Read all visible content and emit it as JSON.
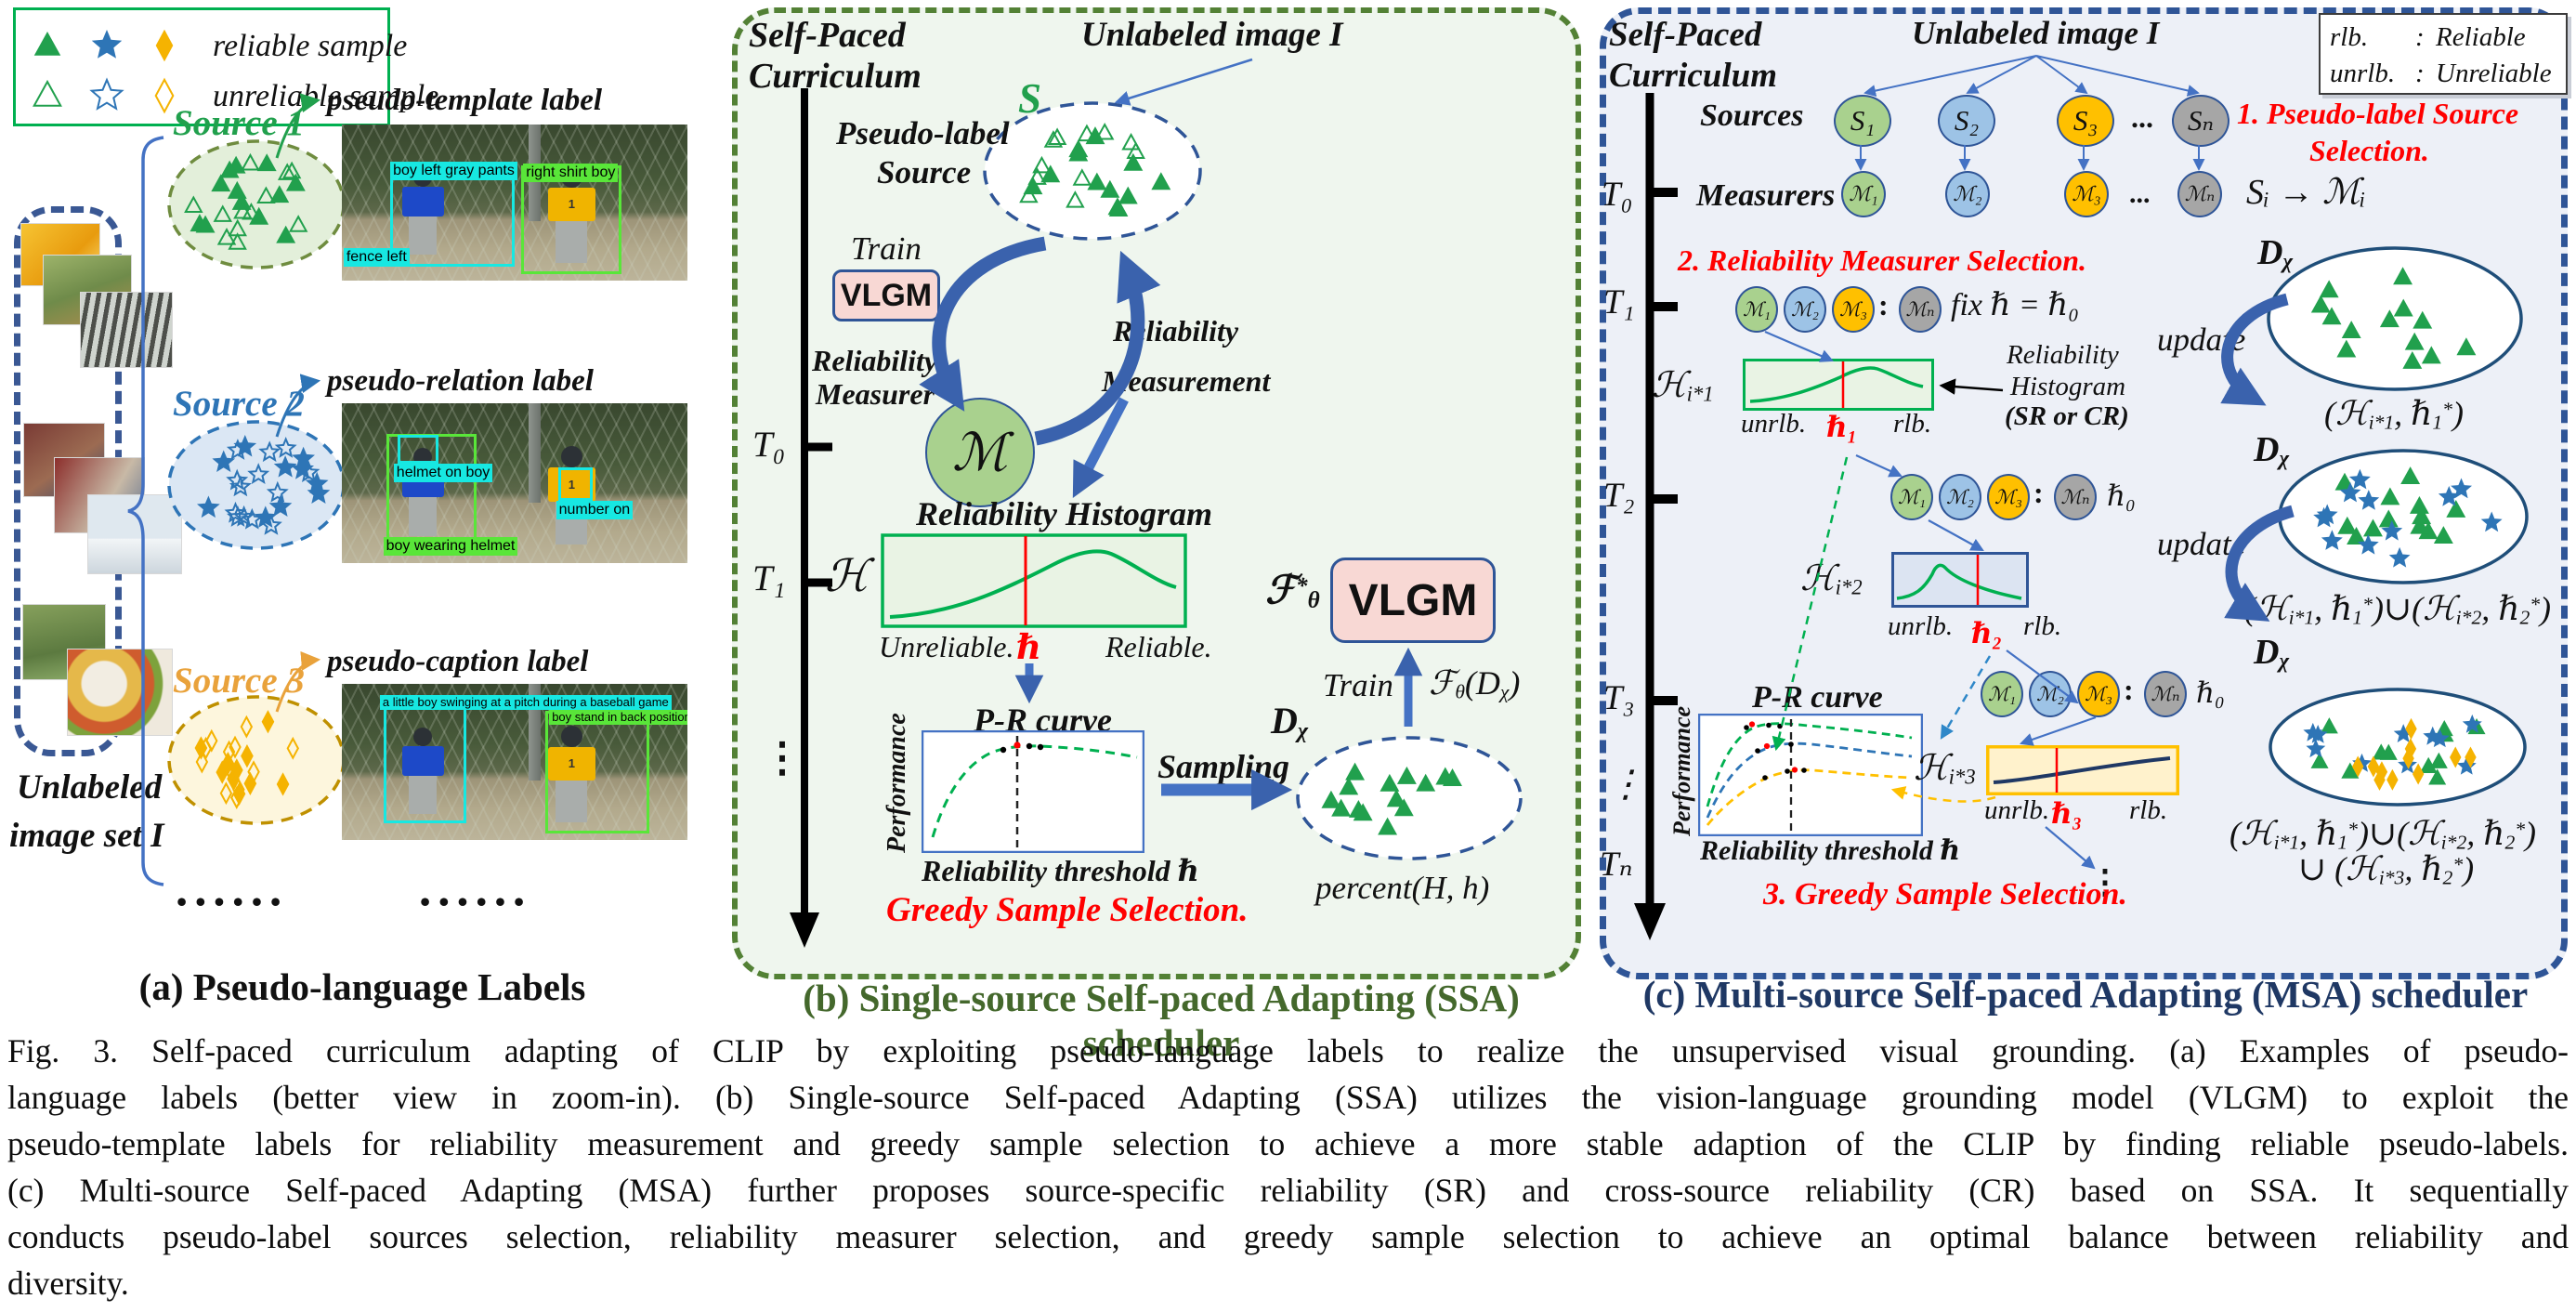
{
  "legend_a": {
    "reliable_label": "reliable sample",
    "unreliable_label": "unreliable sample"
  },
  "panel_a": {
    "title": "(a) Pseudo-language Labels",
    "unlabeled_set_line1": "Unlabeled",
    "unlabeled_set_line2": "image set I",
    "dots": "••••••",
    "sources": [
      {
        "name": "Source 1",
        "label_type": "pseudo-template label"
      },
      {
        "name": "Source 2",
        "label_type": "pseudo-relation label"
      },
      {
        "name": "Source 3",
        "label_type": "pseudo-caption label"
      }
    ],
    "jersey_number": "1",
    "photos": [
      {
        "labels": [
          "boy left gray pants",
          "right shirt boy",
          "fence left"
        ]
      },
      {
        "labels": [
          "helmet on boy",
          "number on",
          "boy wearing helmet"
        ]
      },
      {
        "labels": [
          "a little boy swinging at a pitch during a baseball game",
          "boy stand in back position t"
        ]
      }
    ]
  },
  "panel_b": {
    "curriculum_line1": "Self-Paced",
    "curriculum_line2": "Curriculum",
    "unlabeled_image": "Unlabeled image I",
    "s_symbol": "S",
    "pseudo_label_line1": "Pseudo-label",
    "pseudo_label_line2": "Source",
    "train_label": "Train",
    "vlgm_label": "VLGM",
    "measurer_line1": "Reliability",
    "measurer_line2": "Measurer",
    "measurer_symbol": "ℳ",
    "measurement_line1": "Reliability",
    "measurement_line2": "Measurement",
    "t0": "T₀",
    "t1": "T₁",
    "vdots": "⋮",
    "hist_symbol": "ℋ",
    "hist_title": "Reliability Histogram",
    "unreliable": "Unreliable.",
    "threshold_symbol": "ℏ",
    "reliable": "Reliable.",
    "pr_title": "P-R curve",
    "performance": "Performance",
    "threshold_axis": "Reliability threshold  ℏ",
    "greedy": "Greedy Sample Selection.",
    "sampling": "Sampling",
    "d_chi_html": "D<sub>χ</sub>",
    "percent_label": "percent(H, h)",
    "f_star_html": "ℱ<sup>*</sup><sub>θ</sub>",
    "train2_label": "Train",
    "f_train_html": "ℱ<sub>θ</sub>(D<sub>χ</sub>)",
    "vlgm2_label": "VLGM",
    "title": "(b) Single-source Self-paced Adapting (SSA) scheduler"
  },
  "panel_c": {
    "curriculum_line1": "Self-Paced",
    "curriculum_line2": "Curriculum",
    "unlabeled_image": "Unlabeled image I",
    "legend": {
      "colon": ":",
      "rows": [
        {
          "abbr": "rlb.",
          "name": "Reliable"
        },
        {
          "abbr": "unrlb.",
          "name": "Unreliable"
        }
      ]
    },
    "sources_label": "Sources",
    "measurers_label": "Measurers",
    "source_nodes": [
      "S₁",
      "S₂",
      "S₃",
      "Sₙ"
    ],
    "measurer_nodes": [
      "ℳ₁",
      "ℳ₂",
      "ℳ₃",
      "ℳₙ"
    ],
    "node_ellipsis": "...",
    "row_colon": ":",
    "mapping": "Sᵢ → ℳᵢ",
    "step1_line1": "1. Pseudo-label Source",
    "step1_line2": "Selection.",
    "step2": "2. Reliability Measurer Selection.",
    "step3": "3. Greedy Sample Selection.",
    "t0": "T₀",
    "t1": "T₁",
    "t2": "T₂",
    "t3": "T₃",
    "tn": "Tₙ",
    "vdots": "⋮",
    "vdots2": "⋮",
    "fix_label": "fix ℏ = ℏ₀",
    "h0": "ℏ₀",
    "hist1_html": "ℋ<sub>i*1</sub>",
    "hist2_html": "ℋ<sub>i*2</sub>",
    "hist3_html": "ℋ<sub>i*3</sub>",
    "unrlb": "unrlb.",
    "rlb": "rlb.",
    "h1": "ℏ₁",
    "h2": "ℏ₂",
    "h3": "ℏ₃",
    "note_line1": "Reliability",
    "note_line2": "Histogram",
    "note_line3": "(SR or CR)",
    "update1": "update",
    "update2": "update",
    "pr_title": "P-R curve",
    "performance": "Performance",
    "threshold_axis": "Reliability threshold  ℏ",
    "d_chi_html": "D<sub>χ</sub>",
    "formula1_html": "(ℋ<sub>i*1</sub>, ℏ<sub>1</sub><sup>*</sup>)",
    "formula2_html": "(ℋ<sub>i*1</sub>, ℏ<sub>1</sub><sup>*</sup>)∪(ℋ<sub>i*2</sub>, ℏ<sub>2</sub><sup>*</sup>)",
    "formula3_line1_html": "(ℋ<sub>i*1</sub>, ℏ<sub>1</sub><sup>*</sup>)∪(ℋ<sub>i*2</sub>, ℏ<sub>2</sub><sup>*</sup>)",
    "formula3_line2_html": "∪ (ℋ<sub>i*3</sub>, ℏ<sub>2</sub><sup>*</sup>)",
    "title": "(c) Multi-source Self-paced Adapting (MSA) scheduler"
  },
  "caption": {
    "lines": [
      "Fig. 3.  Self-paced curriculum adapting of CLIP by exploiting pseudo-language labels to realize the unsupervised visual grounding. (a) Examples of pseudo-",
      "language labels (better view in zoom-in). (b) Single-source Self-paced Adapting (SSA) utilizes the vision-language grounding model (VLGM) to exploit the",
      "pseudo-template labels for reliability measurement and greedy sample selection to achieve a more stable adaption of the CLIP by finding reliable pseudo-labels.",
      "(c) Multi-source Self-paced Adapting (MSA) further proposes source-specific reliability (SR) and cross-source reliability (CR) based on SSA. It sequentially",
      "conducts pseudo-label sources selection, reliability measurer selection, and greedy sample selection to achieve an optimal balance between reliability and",
      "diversity."
    ]
  },
  "colors": {
    "reliable_green": "#21a04d",
    "reliable_blue": "#2e75b6",
    "reliable_yellow": "#f5b301",
    "panel_b_border": "#538135",
    "panel_c_border": "#2f5597",
    "title_b": "#44682c",
    "title_c": "#1f3864",
    "step_red": "#ff0000"
  }
}
